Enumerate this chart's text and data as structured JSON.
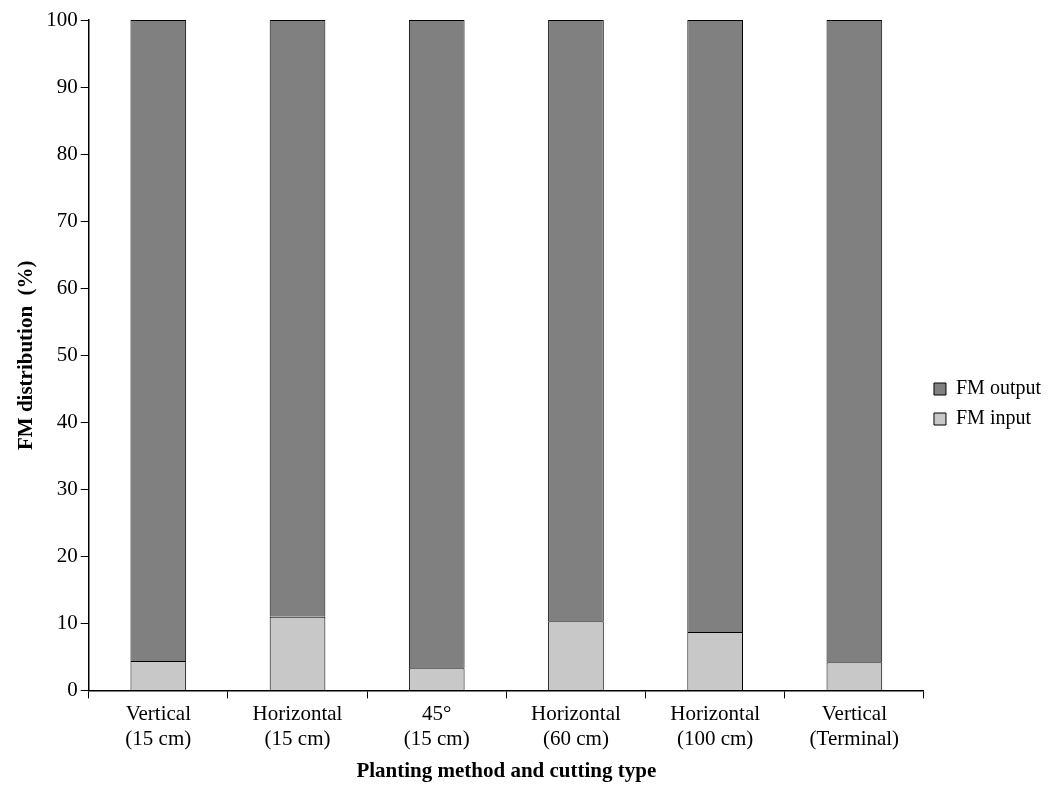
{
  "chart_data": {
    "type": "bar",
    "stacked": true,
    "xlabel": "Planting method and cutting type",
    "ylabel": "FM distribution  (%)",
    "categories": [
      "Vertical\n(15 cm)",
      "Horizontal\n(15 cm)",
      "45°\n(15 cm)",
      "Horizontal\n(60 cm)",
      "Horizontal\n(100 cm)",
      "Vertical\n(Terminal)"
    ],
    "series": [
      {
        "name": "FM input",
        "color": "#c8c8c8",
        "values": [
          4.4,
          11.0,
          3.3,
          10.3,
          8.7,
          4.2
        ]
      },
      {
        "name": "FM output",
        "color": "#808080",
        "values": [
          95.6,
          89.0,
          96.7,
          89.7,
          91.3,
          95.8
        ]
      }
    ],
    "ylim": [
      0,
      100
    ],
    "yticks": [
      0,
      10,
      20,
      30,
      40,
      50,
      60,
      70,
      80,
      90,
      100
    ],
    "grid": false,
    "legend": "right"
  }
}
